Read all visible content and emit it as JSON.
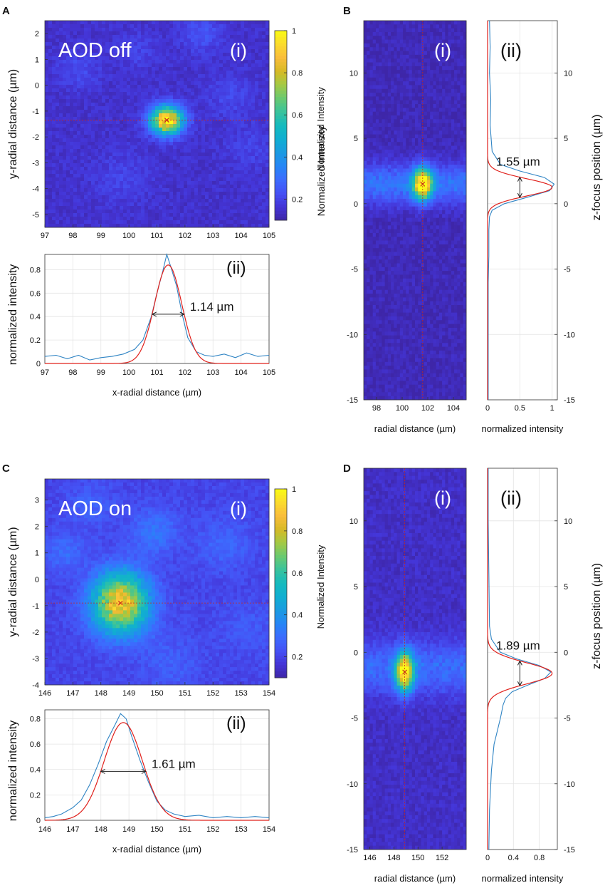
{
  "figure": {
    "panel_letters": [
      "A",
      "B",
      "C",
      "D"
    ],
    "colors": {
      "cmap": [
        "#3e26a8",
        "#4435d7",
        "#4551f4",
        "#3c6cfe",
        "#2686f6",
        "#1b9be1",
        "#10aed1",
        "#15babe",
        "#3ac39c",
        "#6ac96f",
        "#a4c944",
        "#d7ba26",
        "#f9bd3b",
        "#fbdb2d",
        "#f9fb15"
      ],
      "measured": "#2f84c4",
      "fit": "#e0201b",
      "grid": "#e4e4e4",
      "guide": "#c8281e"
    }
  },
  "chart_data": [
    {
      "id": "A-i",
      "type": "heatmap",
      "label": "(i)",
      "overlay_text": "AOD off",
      "xlim": [
        97,
        105
      ],
      "ylim": [
        -5.5,
        2.5
      ],
      "xticks": [
        97,
        98,
        99,
        100,
        101,
        102,
        103,
        104,
        105
      ],
      "yticks": [
        -5,
        -4,
        -3,
        -2,
        -1,
        0,
        1,
        2
      ],
      "ylabel": "y-radial distance (µm)",
      "background": 0.15,
      "peak": {
        "x": 101.35,
        "y": -1.35,
        "sx": 0.4,
        "sy": 0.38,
        "amp": 0.85
      },
      "blobs": [
        [
          98.2,
          0.6,
          0.5,
          0.07
        ],
        [
          102.6,
          2.0,
          0.5,
          0.09
        ],
        [
          103.6,
          -0.4,
          0.6,
          0.06
        ],
        [
          99.8,
          -3.6,
          0.7,
          0.05
        ],
        [
          104.3,
          -2.4,
          0.6,
          0.05
        ],
        [
          100.3,
          1.3,
          0.5,
          0.05
        ]
      ],
      "colorbar": {
        "label": "Normalized Intensity",
        "range": [
          0.1,
          1
        ],
        "ticks": [
          "1",
          "0.8",
          "0.6",
          "0.4",
          "0.2"
        ]
      }
    },
    {
      "id": "A-ii",
      "type": "line",
      "label": "(ii)",
      "xlim": [
        97,
        105
      ],
      "ylim": [
        0,
        0.93
      ],
      "xticks": [
        97,
        98,
        99,
        100,
        101,
        102,
        103,
        104,
        105
      ],
      "yticks": [
        0,
        0.2,
        0.4,
        0.6,
        0.8
      ],
      "xlabel": "x-radial distance (µm)",
      "ylabel": "normalized intensity",
      "fit": {
        "mu": 101.4,
        "sigma": 0.485,
        "amp": 0.84
      },
      "fwhm_text": "1.14 µm",
      "measured_x": [
        97,
        97.4,
        97.8,
        98.2,
        98.6,
        99,
        99.4,
        99.8,
        100.2,
        100.5,
        100.8,
        101,
        101.2,
        101.35,
        101.5,
        101.7,
        101.9,
        102.1,
        102.4,
        102.7,
        103,
        103.4,
        103.8,
        104.2,
        104.6,
        105
      ],
      "measured_y": [
        0.06,
        0.07,
        0.04,
        0.07,
        0.03,
        0.05,
        0.06,
        0.08,
        0.12,
        0.2,
        0.4,
        0.6,
        0.78,
        0.93,
        0.82,
        0.66,
        0.42,
        0.22,
        0.1,
        0.07,
        0.06,
        0.08,
        0.05,
        0.09,
        0.06,
        0.07
      ]
    },
    {
      "id": "B-i",
      "type": "heatmap",
      "label": "(i)",
      "xlim": [
        97,
        105
      ],
      "ylim": [
        -15,
        14
      ],
      "xticks": [
        98,
        100,
        102,
        104
      ],
      "yticks": [
        -15,
        -10,
        -5,
        0,
        5,
        10
      ],
      "xlabel": "radial distance (µm)",
      "ylabel": "Normalized Intensity",
      "background": 0.12,
      "peak": {
        "x": 101.6,
        "y": 1.5,
        "sx": 0.5,
        "sy": 0.8,
        "amp": 0.85
      },
      "band": {
        "y": 1.5,
        "sy": 1.1,
        "amp": 0.22
      },
      "guide_x": 101.6
    },
    {
      "id": "B-ii",
      "type": "line",
      "label": "(ii)",
      "xlim": [
        0,
        1.08
      ],
      "ylim": [
        -15,
        14
      ],
      "xticks": [
        0,
        0.5,
        1
      ],
      "yticks": [
        -15,
        -10,
        -5,
        0,
        5,
        10
      ],
      "xlabel": "normalized intensity",
      "ylabel": "z-focus position (µm)",
      "fit": {
        "mu": 1.25,
        "sigma": 0.66,
        "amp": 1.0
      },
      "fwhm_text": "1.55 µm",
      "measured_y": [
        14,
        12,
        10,
        8,
        6,
        4,
        3,
        2.5,
        2,
        1.5,
        1,
        0.5,
        0,
        -0.5,
        -1,
        -2,
        -4,
        -6,
        -9,
        -12,
        -15
      ],
      "measured_x": [
        0.03,
        0.04,
        0.03,
        0.05,
        0.04,
        0.07,
        0.2,
        0.5,
        0.88,
        1.03,
        0.96,
        0.62,
        0.26,
        0.07,
        0.03,
        0.02,
        0.02,
        0.01,
        0.01,
        0.01,
        0.01
      ]
    },
    {
      "id": "C-i",
      "type": "heatmap",
      "label": "(i)",
      "overlay_text": "AOD on",
      "xlim": [
        146,
        154
      ],
      "ylim": [
        -4,
        3.8
      ],
      "xticks": [
        146,
        147,
        148,
        149,
        150,
        151,
        152,
        153,
        154
      ],
      "yticks": [
        -4,
        -3,
        -2,
        -1,
        0,
        1,
        2,
        3
      ],
      "ylabel": "y-radial distance (µm)",
      "background": 0.2,
      "peak": {
        "x": 148.7,
        "y": -0.9,
        "sx": 0.7,
        "sy": 0.8,
        "amp": 0.68
      },
      "blobs": [
        [
          146.7,
          1.0,
          0.5,
          0.1
        ],
        [
          149.9,
          1.8,
          0.6,
          0.12
        ],
        [
          152.4,
          1.3,
          0.7,
          0.08
        ],
        [
          150.5,
          -3.2,
          0.8,
          0.06
        ],
        [
          147.6,
          2.8,
          0.6,
          0.07
        ],
        [
          153.2,
          -1.8,
          0.7,
          0.05
        ]
      ],
      "colorbar": {
        "label": "Normalized Intensity",
        "range": [
          0.1,
          1
        ],
        "ticks": [
          "1",
          "0.8",
          "0.6",
          "0.4",
          "0.2"
        ]
      }
    },
    {
      "id": "C-ii",
      "type": "line",
      "label": "(ii)",
      "xlim": [
        146,
        154
      ],
      "ylim": [
        0,
        0.87
      ],
      "xticks": [
        146,
        147,
        148,
        149,
        150,
        151,
        152,
        153,
        154
      ],
      "yticks": [
        0,
        0.2,
        0.4,
        0.6,
        0.8
      ],
      "xlabel": "x-radial distance (µm)",
      "ylabel": "normalized intensity",
      "fit": {
        "mu": 148.8,
        "sigma": 0.684,
        "amp": 0.77
      },
      "fwhm_text": "1.61 µm",
      "measured_x": [
        146,
        146.3,
        146.6,
        147,
        147.3,
        147.6,
        147.9,
        148.2,
        148.5,
        148.7,
        148.9,
        149.1,
        149.4,
        149.7,
        150,
        150.3,
        150.6,
        151,
        151.5,
        152,
        152.5,
        153,
        153.5,
        154
      ],
      "measured_y": [
        0.02,
        0.03,
        0.05,
        0.1,
        0.16,
        0.28,
        0.44,
        0.62,
        0.75,
        0.84,
        0.8,
        0.66,
        0.47,
        0.3,
        0.15,
        0.08,
        0.05,
        0.03,
        0.04,
        0.02,
        0.03,
        0.02,
        0.03,
        0.02
      ]
    },
    {
      "id": "D-i",
      "type": "heatmap",
      "label": "(i)",
      "xlim": [
        145.5,
        154
      ],
      "ylim": [
        -15,
        14
      ],
      "xticks": [
        146,
        148,
        150,
        152
      ],
      "yticks": [
        -15,
        -10,
        -5,
        0,
        5,
        10
      ],
      "xlabel": "radial distance (µm)",
      "ylabel": "",
      "background": 0.14,
      "peak": {
        "x": 148.9,
        "y": -1.5,
        "sx": 0.5,
        "sy": 1.0,
        "amp": 0.8
      },
      "band": {
        "y": -1.2,
        "sy": 1.4,
        "amp": 0.18
      },
      "guide_x": 148.9
    },
    {
      "id": "D-ii",
      "type": "line",
      "label": "(ii)",
      "xlim": [
        0,
        1.08
      ],
      "ylim": [
        -15,
        14
      ],
      "xticks": [
        0,
        0.4,
        0.8
      ],
      "yticks": [
        -15,
        -10,
        -5,
        0,
        5,
        10
      ],
      "xlabel": "normalized intensity",
      "ylabel": "z-focus position (µm)",
      "fit": {
        "mu": -1.6,
        "sigma": 0.803,
        "amp": 1.0
      },
      "fwhm_text": "1.89 µm",
      "measured_y": [
        14,
        10,
        6,
        2,
        1,
        0,
        -0.5,
        -1,
        -1.5,
        -2,
        -2.5,
        -3,
        -3.5,
        -4,
        -5,
        -6,
        -7,
        -9,
        -12,
        -15
      ],
      "measured_x": [
        0.01,
        0.01,
        0.02,
        0.03,
        0.06,
        0.2,
        0.45,
        0.8,
        0.98,
        0.88,
        0.62,
        0.38,
        0.28,
        0.24,
        0.2,
        0.15,
        0.1,
        0.06,
        0.03,
        0.02
      ]
    }
  ]
}
